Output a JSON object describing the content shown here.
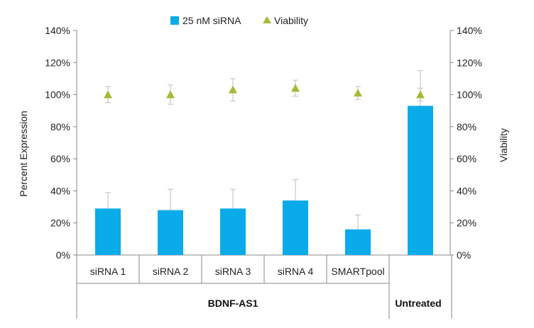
{
  "chart_data": {
    "type": "bar",
    "categories": [
      "siRNA 1",
      "siRNA 2",
      "siRNA 3",
      "siRNA 4",
      "SMARTpool",
      "Untreated"
    ],
    "groups": [
      {
        "label": "BDNF-AS1",
        "categories": [
          "siRNA 1",
          "siRNA 2",
          "siRNA 3",
          "siRNA 4",
          "SMARTpool"
        ]
      },
      {
        "label": "Untreated",
        "categories": [
          "Untreated"
        ]
      }
    ],
    "series": [
      {
        "name": "25 nM siRNA",
        "type": "bar",
        "axis": "left",
        "values": [
          29,
          28,
          29,
          34,
          16,
          93
        ],
        "error": [
          10,
          13,
          12,
          13,
          9,
          22
        ]
      },
      {
        "name": "Viability",
        "type": "scatter",
        "marker": "triangle",
        "axis": "right",
        "values": [
          100,
          100,
          103,
          104,
          101,
          100
        ],
        "error": [
          5,
          6,
          7,
          5,
          4,
          4
        ]
      }
    ],
    "ylabel": "Percent Expression",
    "y2label": "Viability",
    "ylim": [
      0,
      140
    ],
    "y2lim": [
      0,
      140
    ],
    "yticks": [
      "0%",
      "20%",
      "40%",
      "60%",
      "80%",
      "100%",
      "120%",
      "140%"
    ],
    "y2ticks": [
      "0%",
      "20%",
      "40%",
      "60%",
      "80%",
      "100%",
      "120%",
      "140%"
    ],
    "legend_position": "top-center",
    "grid": false,
    "colors": {
      "bar": "#0AABE9",
      "marker": "#A2BA35",
      "error": "#c8c8c8",
      "axis": "#888888"
    }
  }
}
